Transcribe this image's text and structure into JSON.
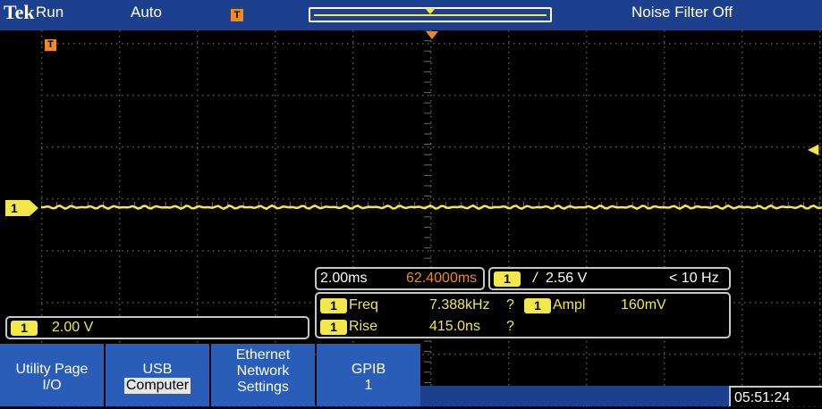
{
  "status_bar": {
    "brand": "Tek",
    "run_state": "Run",
    "trigger_mode": "Auto",
    "noise_filter": "Noise Filter Off"
  },
  "timebase": {
    "scale": "2.00ms",
    "position": "62.4000ms"
  },
  "trigger": {
    "channel": "1",
    "slope_symbol": "/",
    "level": "2.56 V",
    "freq_readout": "< 10 Hz"
  },
  "measurements": [
    {
      "channel": "1",
      "label": "Freq",
      "value": "7.388kHz",
      "flag": "?"
    },
    {
      "channel": "1",
      "label": "Ampl",
      "value": "160mV",
      "flag": ""
    },
    {
      "channel": "1",
      "label": "Rise",
      "value": "415.0ns",
      "flag": "?"
    }
  ],
  "channel1": {
    "number": "1",
    "scale": "2.00 V"
  },
  "menu": {
    "utility_page": {
      "title": "Utility Page",
      "value": "I/O"
    },
    "usb": {
      "title": "USB",
      "value": "Computer"
    },
    "ethernet": {
      "line1": "Ethernet",
      "line2": "Network",
      "line3": "Settings"
    },
    "gpib": {
      "title": "GPIB",
      "value": "1"
    }
  },
  "clock": "05:51:24",
  "colors": {
    "channel1": "#f2e84a",
    "trigger": "#f08a1c",
    "menu_blue": "#2a5db8",
    "bar_blue": "#1c3f8e"
  }
}
